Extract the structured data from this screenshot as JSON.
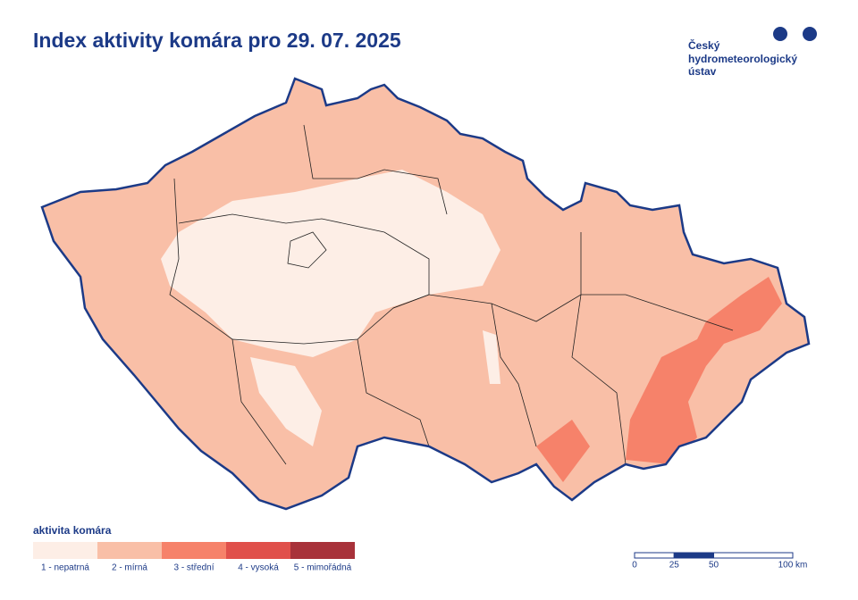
{
  "title": "Index aktivity komára pro 29. 07. 2025",
  "logo": [
    "Český",
    "hydrometeorologický",
    "ústav"
  ],
  "legend": {
    "title": "aktivita komára",
    "items": [
      {
        "label": "1 - nepatrná",
        "color": "#fdeee6"
      },
      {
        "label": "2 - mírná",
        "color": "#f9bfa7"
      },
      {
        "label": "3 - střední",
        "color": "#f6826a"
      },
      {
        "label": "4 - vysoká",
        "color": "#e0504b"
      },
      {
        "label": "5 - mimořádná",
        "color": "#a8323a"
      }
    ]
  },
  "scale": {
    "ticks": [
      0,
      25,
      50,
      {
        "value": 100,
        "label": "100 km"
      }
    ]
  }
}
